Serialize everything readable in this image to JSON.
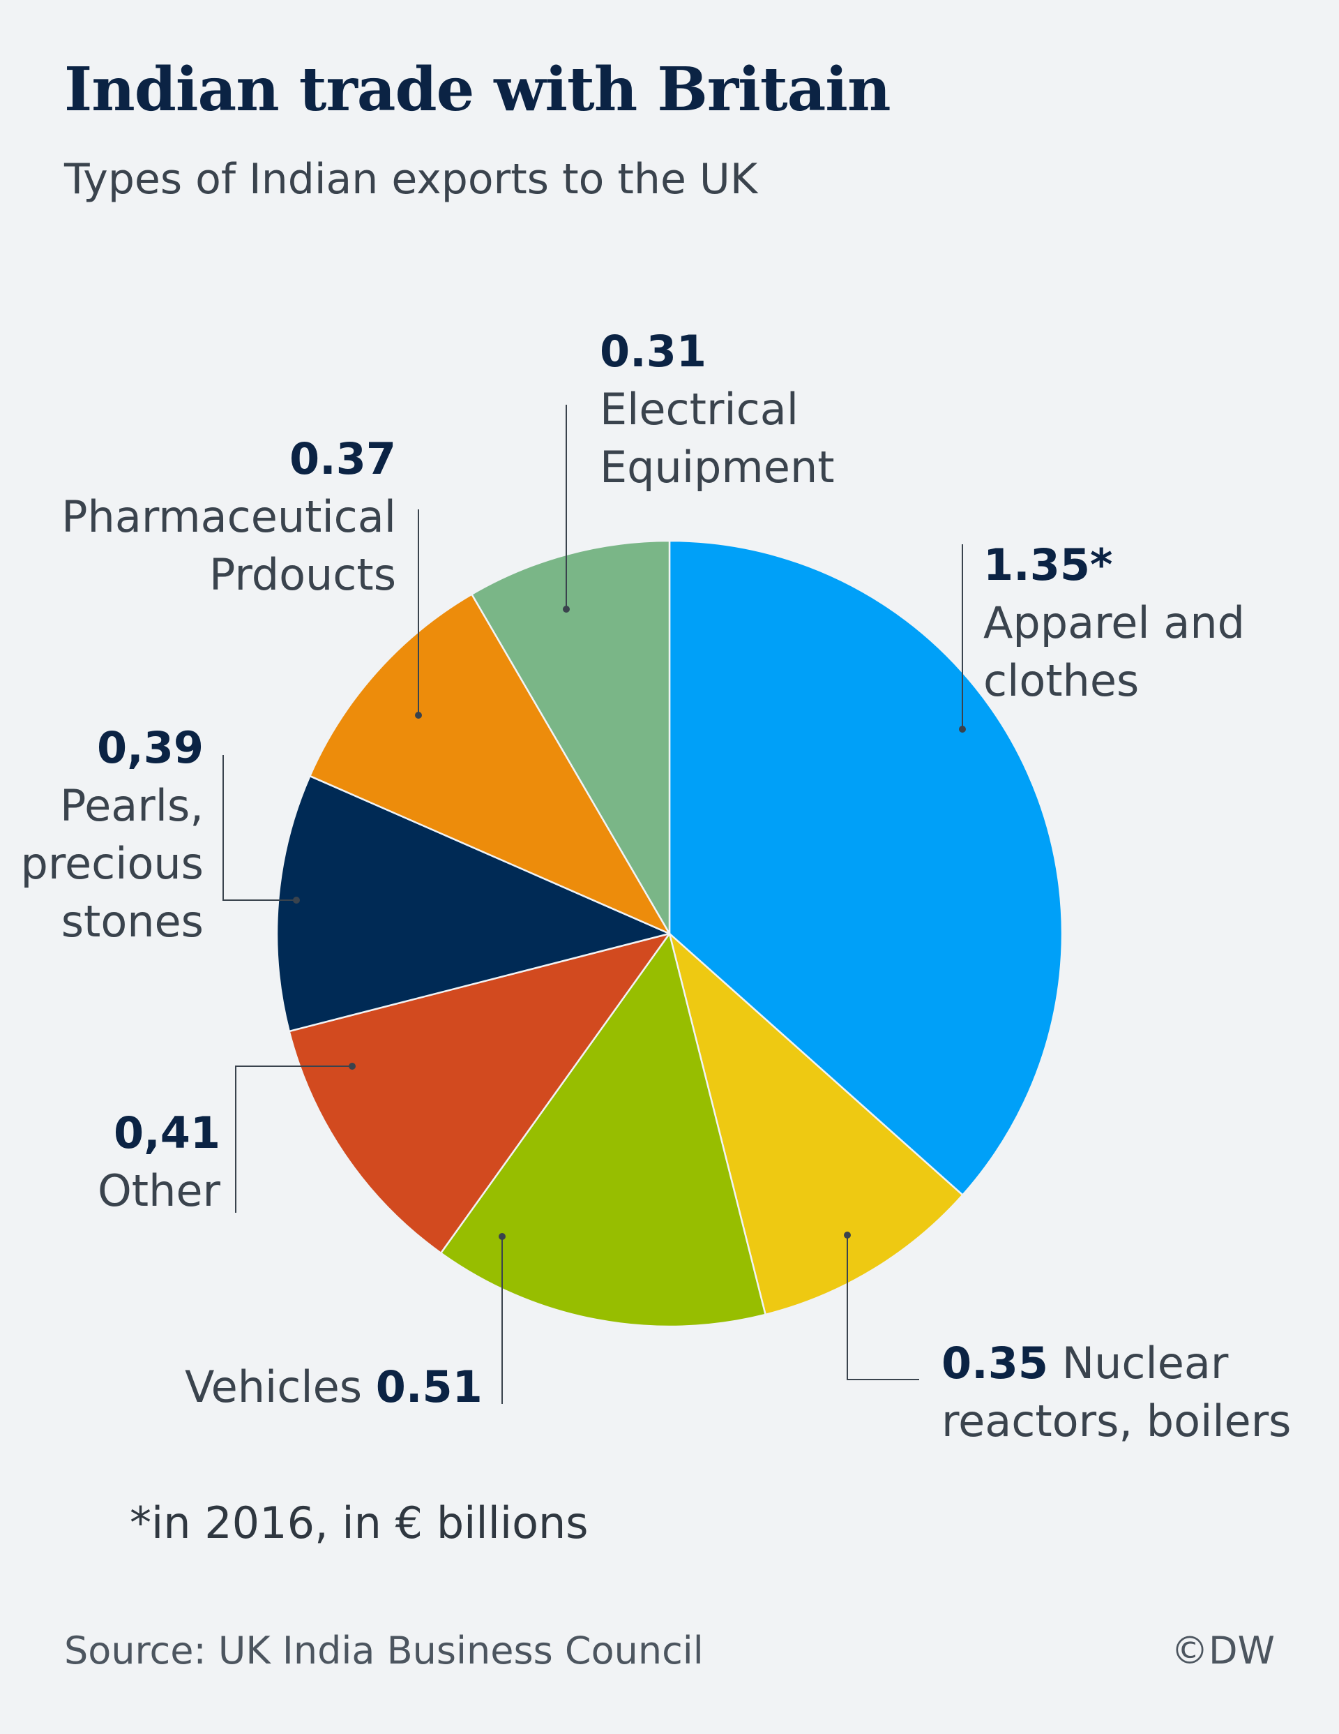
{
  "header": {
    "title": "Indian trade with Britain",
    "subtitle": "Types of Indian exports to the UK"
  },
  "chart_data": {
    "type": "pie",
    "title": "Indian trade with Britain",
    "subtitle": "Types of Indian exports to the UK",
    "unit": "€ billions",
    "year": 2016,
    "slices": [
      {
        "name": "Apparel and clothes",
        "value": 1.35,
        "value_label": "1.35*",
        "color": "#00a0f8"
      },
      {
        "name": "Nuclear reactors, boilers",
        "value": 0.35,
        "value_label": "0.35",
        "color": "#eec912"
      },
      {
        "name": "Vehicles",
        "value": 0.51,
        "value_label": "0.51",
        "color": "#97be00"
      },
      {
        "name": "Other",
        "value": 0.41,
        "value_label": "0,41",
        "color": "#d24a1f"
      },
      {
        "name": "Pearls, precious stones",
        "value": 0.39,
        "value_label": "0,39",
        "color": "#002a55"
      },
      {
        "name": "Pharmaceutical Prdoucts",
        "value": 0.37,
        "value_label": "0.37",
        "color": "#ed8c0b"
      },
      {
        "name": "Electrical Equipment",
        "value": 0.31,
        "value_label": "0.31",
        "color": "#7ab687"
      }
    ]
  },
  "labels": {
    "apparel": {
      "value": "1.35*",
      "name_line1": "Apparel and",
      "name_line2": "clothes"
    },
    "nuclear": {
      "value": "0.35",
      "name_line1": "Nuclear",
      "name_line2": "reactors, boilers"
    },
    "vehicles": {
      "name": "Vehicles",
      "value": "0.51"
    },
    "other": {
      "value": "0,41",
      "name": "Other"
    },
    "pearls": {
      "value": "0,39",
      "name_line1": "Pearls,",
      "name_line2": "precious",
      "name_line3": "stones"
    },
    "pharma": {
      "value": "0.37",
      "name_line1": "Pharmaceutical",
      "name_line2": "Prdoucts"
    },
    "electrical": {
      "value": "0.31",
      "name_line1": "Electrical",
      "name_line2": "Equipment"
    }
  },
  "footnote": "*in 2016, in € billions",
  "source": "Source: UK India Business Council",
  "credit": "©DW",
  "colors": {
    "background": "#f1f3f5",
    "title": "#0b2344",
    "text": "#3a434d",
    "leader": "#3a434d"
  }
}
